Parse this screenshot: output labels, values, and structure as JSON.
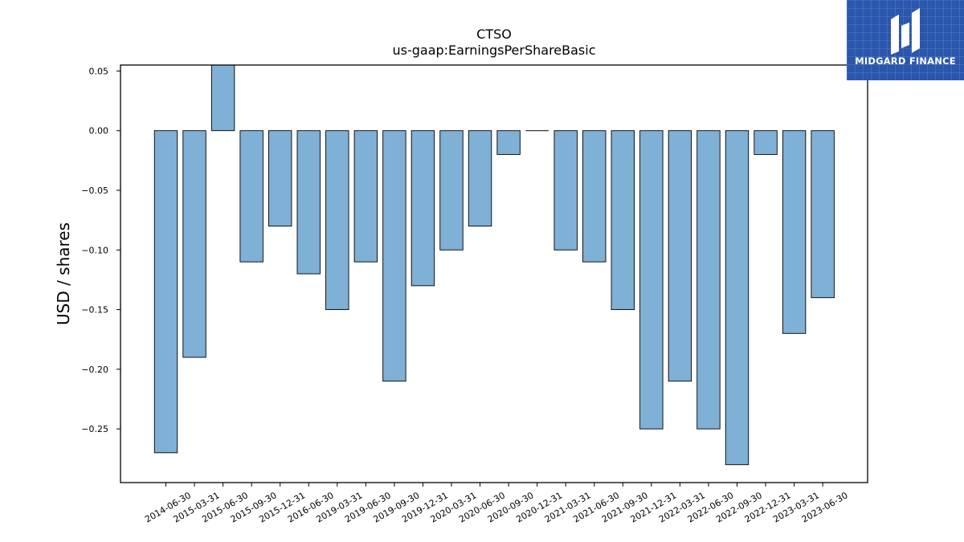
{
  "brand": {
    "name": "MIDGARD FINANCE",
    "logo_color": "#2a56ad"
  },
  "chart_data": {
    "type": "bar",
    "title": "CTSO",
    "subtitle": "us-gaap:EarningsPerShareBasic",
    "xlabel": "",
    "ylabel": "USD / shares",
    "ylim": [
      -0.295,
      0.055
    ],
    "yticks": [
      0.05,
      0.0,
      -0.05,
      -0.1,
      -0.15,
      -0.2,
      -0.25
    ],
    "ytick_labels": [
      "0.05",
      "0.00",
      "−0.05",
      "−0.10",
      "−0.15",
      "−0.20",
      "−0.25"
    ],
    "grid": false,
    "bar_color": "#7fb0d5",
    "categories": [
      "2014-06-30",
      "2015-03-31",
      "2015-06-30",
      "2015-09-30",
      "2015-12-31",
      "2016-06-30",
      "2019-03-31",
      "2019-06-30",
      "2019-09-30",
      "2019-12-31",
      "2020-03-31",
      "2020-06-30",
      "2020-09-30",
      "2020-12-31",
      "2021-03-31",
      "2021-06-30",
      "2021-09-30",
      "2021-12-31",
      "2022-03-31",
      "2022-06-30",
      "2022-09-30",
      "2022-12-31",
      "2023-03-31",
      "2023-06-30"
    ],
    "values": [
      -0.27,
      -0.19,
      0.06,
      -0.11,
      -0.08,
      -0.12,
      -0.15,
      -0.11,
      -0.21,
      -0.13,
      -0.1,
      -0.08,
      -0.02,
      0.0,
      -0.1,
      -0.11,
      -0.15,
      -0.25,
      -0.21,
      -0.25,
      -0.28,
      -0.02,
      -0.17,
      -0.14
    ]
  }
}
